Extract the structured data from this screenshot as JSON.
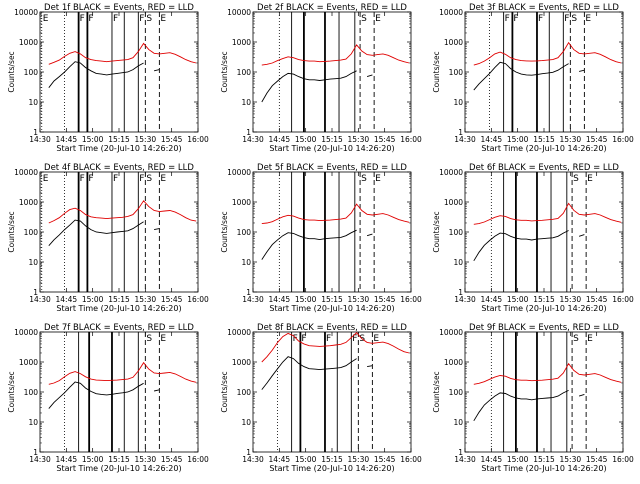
{
  "chart_data": {
    "type": "line",
    "layout": "3x3 grid",
    "yscale": "log",
    "ylim": [
      1,
      10000
    ],
    "xlim": [
      "14:30",
      "16:00"
    ],
    "ylabel": "Counts/sec",
    "xlabel": "Start Time (20-Jul-10 14:26:20)",
    "x_ticks": [
      "14:30",
      "14:45",
      "15:00",
      "15:15",
      "15:30",
      "15:45",
      "16:00"
    ],
    "y_ticks": [
      "1",
      "10",
      "100",
      "1000",
      "10000"
    ],
    "grid": false,
    "colors": {
      "events": "#000000",
      "lld": "#e00000"
    },
    "times": [
      "14:35",
      "14:38",
      "14:41",
      "14:44",
      "14:47",
      "14:50",
      "14:53",
      "14:56",
      "14:59",
      "15:02",
      "15:05",
      "15:08",
      "15:11",
      "15:14",
      "15:17",
      "15:20",
      "15:23",
      "15:26",
      "15:29",
      "15:32",
      "15:35",
      "15:38",
      "15:41",
      "15:44",
      "15:47",
      "15:50",
      "15:53",
      "15:56",
      "15:59"
    ],
    "panels": [
      {
        "title": "Det 1f BLACK = Events, RED = LLD",
        "markers": [
          {
            "time": "14:31",
            "label": "E",
            "style": "dotted"
          },
          {
            "time": "14:44",
            "label": "",
            "style": "dotted"
          },
          {
            "time": "14:52",
            "label": "F",
            "style": "solid"
          },
          {
            "time": "14:57",
            "label": "F",
            "style": "solid"
          },
          {
            "time": "15:11",
            "label": "F",
            "style": "solid"
          },
          {
            "time": "15:18",
            "label": "",
            "style": "solid"
          },
          {
            "time": "15:26",
            "label": "F",
            "style": "solid"
          },
          {
            "time": "15:30",
            "label": "S",
            "style": "dashed"
          },
          {
            "time": "15:38",
            "label": "E",
            "style": "dashed"
          }
        ],
        "lld": [
          180,
          210,
          250,
          330,
          420,
          480,
          400,
          300,
          260,
          240,
          230,
          220,
          230,
          240,
          250,
          260,
          300,
          480,
          900,
          560,
          420,
          400,
          420,
          440,
          390,
          320,
          260,
          220,
          200
        ],
        "events": [
          30,
          50,
          70,
          100,
          150,
          220,
          200,
          140,
          110,
          90,
          85,
          80,
          85,
          90,
          95,
          100,
          120,
          160,
          200,
          0,
          110,
          120,
          0,
          0,
          0,
          0,
          0,
          0,
          0
        ]
      },
      {
        "title": "Det 2f BLACK = Events, RED = LLD",
        "markers": [
          {
            "time": "14:45",
            "label": "",
            "style": "dotted"
          },
          {
            "time": "14:52",
            "label": "",
            "style": "solid"
          },
          {
            "time": "14:59",
            "label": "",
            "style": "solid"
          },
          {
            "time": "15:11",
            "label": "",
            "style": "solid"
          },
          {
            "time": "15:19",
            "label": "",
            "style": "solid"
          },
          {
            "time": "15:28",
            "label": "",
            "style": "solid"
          },
          {
            "time": "15:31",
            "label": "S",
            "style": "dashed"
          },
          {
            "time": "15:39",
            "label": "E",
            "style": "dashed"
          }
        ],
        "lld": [
          170,
          180,
          200,
          240,
          280,
          320,
          300,
          260,
          240,
          230,
          230,
          220,
          225,
          230,
          240,
          250,
          270,
          400,
          800,
          500,
          380,
          360,
          380,
          400,
          360,
          300,
          250,
          220,
          200
        ],
        "events": [
          10,
          20,
          35,
          50,
          70,
          90,
          85,
          70,
          60,
          55,
          55,
          52,
          55,
          58,
          60,
          62,
          70,
          90,
          110,
          0,
          70,
          80,
          0,
          0,
          0,
          0,
          0,
          0,
          0
        ]
      },
      {
        "title": "Det 3f BLACK = Events, RED = LLD",
        "markers": [
          {
            "time": "14:44",
            "label": "",
            "style": "dotted"
          },
          {
            "time": "14:52",
            "label": "F",
            "style": "solid"
          },
          {
            "time": "14:57",
            "label": "F",
            "style": "solid"
          },
          {
            "time": "15:11",
            "label": "F",
            "style": "solid"
          },
          {
            "time": "15:18",
            "label": "",
            "style": "solid"
          },
          {
            "time": "15:26",
            "label": "F",
            "style": "solid"
          },
          {
            "time": "15:30",
            "label": "S",
            "style": "dashed"
          },
          {
            "time": "15:38",
            "label": "E",
            "style": "dashed"
          }
        ],
        "lld": [
          170,
          190,
          230,
          300,
          400,
          460,
          390,
          300,
          260,
          240,
          235,
          230,
          235,
          240,
          250,
          260,
          300,
          480,
          950,
          560,
          420,
          400,
          420,
          440,
          390,
          320,
          260,
          220,
          200
        ],
        "events": [
          25,
          40,
          60,
          90,
          140,
          210,
          190,
          130,
          100,
          85,
          80,
          78,
          82,
          88,
          92,
          98,
          115,
          150,
          190,
          0,
          105,
          115,
          0,
          0,
          0,
          0,
          0,
          0,
          0
        ]
      },
      {
        "title": "Det 4f BLACK = Events, RED = LLD",
        "markers": [
          {
            "time": "14:31",
            "label": "E",
            "style": "dotted"
          },
          {
            "time": "14:44",
            "label": "",
            "style": "dotted"
          },
          {
            "time": "14:52",
            "label": "F",
            "style": "solid"
          },
          {
            "time": "14:57",
            "label": "F",
            "style": "solid"
          },
          {
            "time": "15:11",
            "label": "F",
            "style": "solid"
          },
          {
            "time": "15:18",
            "label": "",
            "style": "solid"
          },
          {
            "time": "15:26",
            "label": "F",
            "style": "solid"
          },
          {
            "time": "15:30",
            "label": "S",
            "style": "dashed"
          },
          {
            "time": "15:38",
            "label": "E",
            "style": "dashed"
          }
        ],
        "lld": [
          200,
          240,
          300,
          420,
          560,
          620,
          520,
          380,
          320,
          300,
          290,
          280,
          290,
          300,
          310,
          330,
          380,
          600,
          1100,
          700,
          520,
          480,
          500,
          520,
          460,
          380,
          300,
          250,
          230
        ],
        "events": [
          35,
          55,
          80,
          120,
          170,
          250,
          230,
          160,
          120,
          100,
          95,
          90,
          95,
          100,
          105,
          110,
          130,
          170,
          220,
          0,
          120,
          130,
          0,
          0,
          0,
          0,
          0,
          0,
          0
        ]
      },
      {
        "title": "Det 5f BLACK = Events, RED = LLD",
        "markers": [
          {
            "time": "14:45",
            "label": "",
            "style": "dotted"
          },
          {
            "time": "14:52",
            "label": "",
            "style": "solid"
          },
          {
            "time": "14:59",
            "label": "",
            "style": "solid"
          },
          {
            "time": "15:11",
            "label": "",
            "style": "solid"
          },
          {
            "time": "15:19",
            "label": "",
            "style": "solid"
          },
          {
            "time": "15:28",
            "label": "",
            "style": "solid"
          },
          {
            "time": "15:31",
            "label": "S",
            "style": "dashed"
          },
          {
            "time": "15:39",
            "label": "E",
            "style": "dashed"
          }
        ],
        "lld": [
          190,
          200,
          220,
          270,
          320,
          360,
          340,
          290,
          260,
          250,
          250,
          240,
          245,
          250,
          260,
          270,
          290,
          430,
          850,
          520,
          390,
          370,
          390,
          410,
          370,
          310,
          260,
          230,
          210
        ],
        "events": [
          12,
          22,
          38,
          55,
          75,
          95,
          90,
          75,
          65,
          60,
          60,
          56,
          60,
          62,
          64,
          66,
          75,
          95,
          115,
          0,
          75,
          85,
          0,
          0,
          0,
          0,
          0,
          0,
          0
        ]
      },
      {
        "title": "Det 6f BLACK = Events, RED = LLD",
        "markers": [
          {
            "time": "14:45",
            "label": "",
            "style": "dotted"
          },
          {
            "time": "14:52",
            "label": "",
            "style": "solid"
          },
          {
            "time": "14:59",
            "label": "",
            "style": "solid"
          },
          {
            "time": "15:11",
            "label": "",
            "style": "solid"
          },
          {
            "time": "15:19",
            "label": "",
            "style": "solid"
          },
          {
            "time": "15:28",
            "label": "",
            "style": "solid"
          },
          {
            "time": "15:31",
            "label": "S",
            "style": "dashed"
          },
          {
            "time": "15:39",
            "label": "E",
            "style": "dashed"
          }
        ],
        "lld": [
          180,
          190,
          215,
          260,
          310,
          350,
          330,
          280,
          255,
          245,
          245,
          235,
          240,
          245,
          255,
          265,
          285,
          420,
          900,
          530,
          390,
          370,
          390,
          410,
          370,
          310,
          260,
          230,
          210
        ],
        "events": [
          11,
          21,
          36,
          52,
          72,
          92,
          88,
          72,
          62,
          58,
          58,
          54,
          58,
          60,
          62,
          64,
          72,
          92,
          112,
          0,
          72,
          82,
          0,
          0,
          0,
          0,
          0,
          0,
          0
        ]
      },
      {
        "title": "Det 7f BLACK = Events, RED = LLD",
        "markers": [
          {
            "time": "14:44",
            "label": "",
            "style": "dotted"
          },
          {
            "time": "14:52",
            "label": "",
            "style": "solid"
          },
          {
            "time": "14:58",
            "label": "",
            "style": "solid"
          },
          {
            "time": "15:11",
            "label": "",
            "style": "solid"
          },
          {
            "time": "15:18",
            "label": "",
            "style": "solid"
          },
          {
            "time": "15:26",
            "label": "",
            "style": "solid"
          },
          {
            "time": "15:30",
            "label": "S",
            "style": "dashed"
          },
          {
            "time": "15:38",
            "label": "E",
            "style": "dashed"
          }
        ],
        "lld": [
          180,
          200,
          240,
          320,
          420,
          480,
          410,
          320,
          270,
          250,
          245,
          240,
          245,
          250,
          260,
          270,
          310,
          500,
          950,
          580,
          430,
          410,
          430,
          450,
          400,
          330,
          270,
          230,
          210
        ],
        "events": [
          28,
          45,
          65,
          95,
          145,
          215,
          195,
          135,
          105,
          88,
          83,
          80,
          84,
          90,
          94,
          100,
          118,
          155,
          195,
          0,
          108,
          118,
          0,
          0,
          0,
          0,
          0,
          0,
          0
        ]
      },
      {
        "title": "Det 8f BLACK = Events, RED = LLD",
        "markers": [
          {
            "time": "14:44",
            "label": "",
            "style": "dotted"
          },
          {
            "time": "14:52",
            "label": "F",
            "style": "solid"
          },
          {
            "time": "14:57",
            "label": "F",
            "style": "solid"
          },
          {
            "time": "15:11",
            "label": "F",
            "style": "solid"
          },
          {
            "time": "15:18",
            "label": "",
            "style": "solid"
          },
          {
            "time": "15:26",
            "label": "F",
            "style": "solid"
          },
          {
            "time": "15:30",
            "label": "S",
            "style": "dashed"
          },
          {
            "time": "15:38",
            "label": "E",
            "style": "dashed"
          }
        ],
        "lld": [
          1000,
          1500,
          2500,
          4500,
          7000,
          9000,
          7500,
          5000,
          4000,
          3500,
          3400,
          3300,
          3400,
          3500,
          3700,
          3900,
          4500,
          6500,
          9500,
          6000,
          4500,
          4200,
          4400,
          4600,
          4100,
          3400,
          2700,
          2200,
          2000
        ],
        "events": [
          120,
          200,
          350,
          600,
          1000,
          1500,
          1300,
          900,
          700,
          600,
          580,
          560,
          580,
          600,
          620,
          650,
          750,
          1000,
          1300,
          0,
          700,
          750,
          0,
          0,
          0,
          0,
          0,
          0,
          0
        ]
      },
      {
        "title": "Det 9f BLACK = Events, RED = LLD",
        "markers": [
          {
            "time": "14:45",
            "label": "",
            "style": "dotted"
          },
          {
            "time": "14:52",
            "label": "",
            "style": "solid"
          },
          {
            "time": "14:59",
            "label": "",
            "style": "solid"
          },
          {
            "time": "15:11",
            "label": "",
            "style": "solid"
          },
          {
            "time": "15:19",
            "label": "",
            "style": "solid"
          },
          {
            "time": "15:28",
            "label": "",
            "style": "solid"
          },
          {
            "time": "15:31",
            "label": "S",
            "style": "dashed"
          },
          {
            "time": "15:39",
            "label": "E",
            "style": "dashed"
          }
        ],
        "lld": [
          180,
          195,
          220,
          265,
          315,
          355,
          335,
          285,
          258,
          248,
          248,
          238,
          243,
          248,
          258,
          268,
          288,
          425,
          880,
          525,
          390,
          370,
          390,
          410,
          370,
          310,
          260,
          230,
          210
        ],
        "events": [
          11,
          21,
          37,
          53,
          73,
          93,
          89,
          73,
          63,
          59,
          59,
          55,
          59,
          61,
          63,
          65,
          73,
          93,
          113,
          0,
          73,
          83,
          0,
          0,
          0,
          0,
          0,
          0,
          0
        ]
      }
    ]
  }
}
